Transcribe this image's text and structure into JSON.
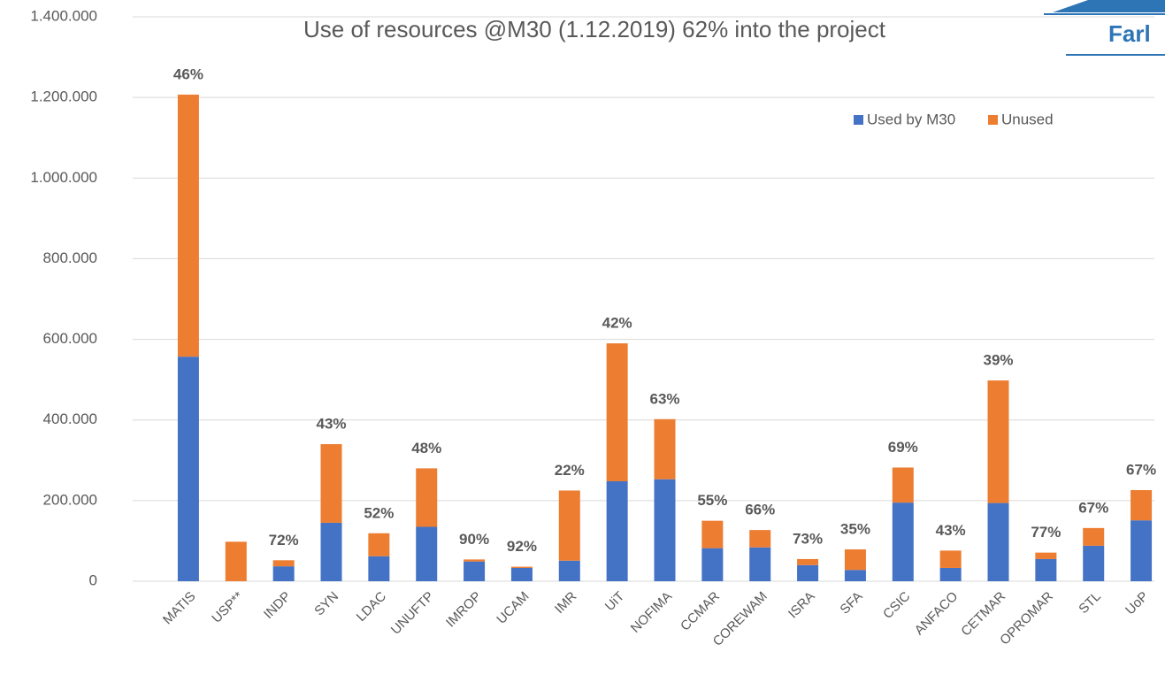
{
  "chart_data": {
    "type": "stacked_bar",
    "title": "Use of resources @M30 (1.12.2019) 62% into the project",
    "logo_text": "Farl",
    "categories": [
      "MATIS",
      "USP**",
      "INDP",
      "SYN",
      "LDAC",
      "UNUFTP",
      "IMROP",
      "UCAM",
      "IMR",
      "UiT",
      "NOFIMA",
      "CCMAR",
      "COREWAM",
      "ISRA",
      "SFA",
      "CSIC",
      "ANFACO",
      "CETMAR",
      "OPROMAR",
      "STL",
      "UoP"
    ],
    "series": [
      {
        "name": "Used by M30",
        "color": "#4472c4",
        "values": [
          557000,
          0,
          37000,
          145000,
          62000,
          135000,
          49000,
          33000,
          51000,
          248000,
          253000,
          82000,
          84000,
          40000,
          28000,
          195000,
          33000,
          194000,
          55000,
          88000,
          151000
        ]
      },
      {
        "name": "Unused",
        "color": "#ed7d31",
        "values": [
          650000,
          98000,
          15000,
          195000,
          57000,
          145000,
          5000,
          3000,
          174000,
          342000,
          149000,
          68000,
          43000,
          15000,
          51000,
          87000,
          43000,
          304000,
          16000,
          44000,
          75000
        ]
      }
    ],
    "annotations": [
      "46%",
      null,
      "72%",
      "43%",
      "52%",
      "48%",
      "90%",
      "92%",
      "22%",
      "42%",
      "63%",
      "55%",
      "66%",
      "73%",
      "35%",
      "69%",
      "43%",
      "39%",
      "77%",
      "67%",
      "67%"
    ],
    "ylim": [
      0,
      1400000
    ],
    "yticks": [
      0,
      {
        "value": 200000,
        "label": "200.000"
      },
      {
        "value": 400000,
        "label": "400.000"
      },
      {
        "value": 600000,
        "label": "600.000"
      },
      {
        "value": 800000,
        "label": "800.000"
      },
      {
        "value": 1000000,
        "label": "1.000.000"
      },
      {
        "value": 1200000,
        "label": "1.200.000"
      },
      {
        "value": 1400000,
        "label": "1.400.000"
      }
    ],
    "grid": true,
    "legend": "top-right"
  }
}
